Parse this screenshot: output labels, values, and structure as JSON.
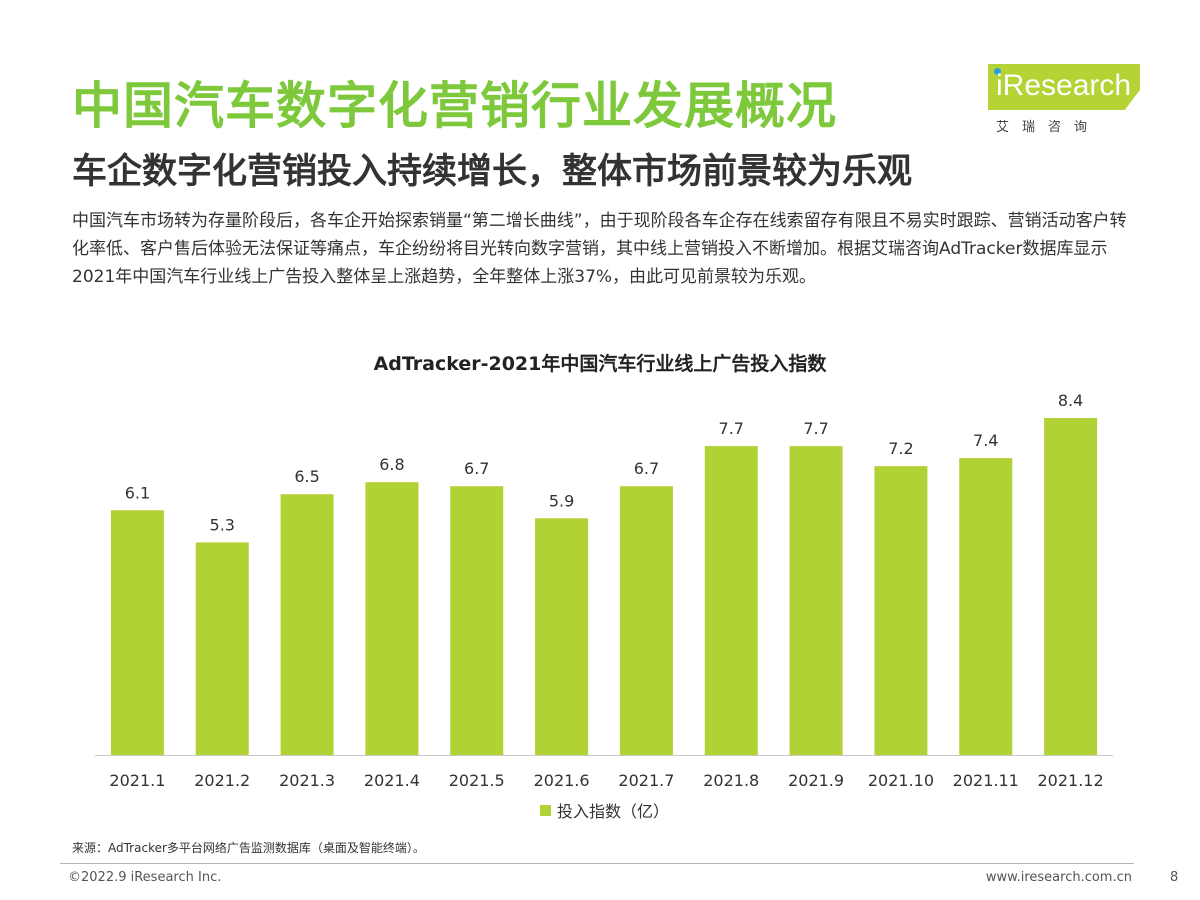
{
  "header": {
    "title": "中国汽车数字化营销行业发展概况",
    "subtitle": "车企数字化营销投入持续增长，整体市场前景较为乐观"
  },
  "logo": {
    "word": "iResearch",
    "cn": "艾瑞咨询",
    "accent_color": "#b4d334"
  },
  "body_text": "中国汽车市场转为存量阶段后，各车企开始探索销量“第二增长曲线”，由于现阶段各车企存在线索留存有限且不易实时跟踪、营销活动客户转化率低、客户售后体验无法保证等痛点，车企纷纷将目光转向数字营销，其中线上营销投入不断增加。根据艾瑞咨询AdTracker数据库显示2021年中国汽车行业线上广告投入整体呈上涨趋势，全年整体上涨37%，由此可见前景较为乐观。",
  "chart_data": {
    "type": "bar",
    "title": "AdTracker-2021年中国汽车行业线上广告投入指数",
    "categories": [
      "2021.1",
      "2021.2",
      "2021.3",
      "2021.4",
      "2021.5",
      "2021.6",
      "2021.7",
      "2021.8",
      "2021.9",
      "2021.10",
      "2021.11",
      "2021.12"
    ],
    "series": [
      {
        "name": "投入指数（亿）",
        "values": [
          6.1,
          5.3,
          6.5,
          6.8,
          6.7,
          5.9,
          6.7,
          7.7,
          7.7,
          7.2,
          7.4,
          8.4
        ],
        "color": "#b0d235"
      }
    ],
    "value_labels": [
      "6.1",
      "5.3",
      "6.5",
      "6.8",
      "6.7",
      "5.9",
      "6.7",
      "7.7",
      "7.7",
      "7.2",
      "7.4",
      "8.4"
    ],
    "ylim": [
      0,
      8.4
    ],
    "grid": false,
    "legend_position": "bottom"
  },
  "footer": {
    "source": "来源：AdTracker多平台网络广告监测数据库（桌面及智能终端）。",
    "copyright": "©2022.9 iResearch Inc.",
    "website": "www.iresearch.com.cn",
    "page_number": "8"
  }
}
